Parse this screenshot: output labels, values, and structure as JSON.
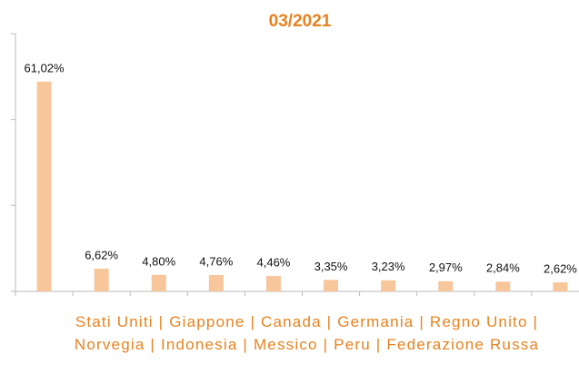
{
  "chart_data": {
    "type": "bar",
    "title": "03/2021",
    "categories": [
      null,
      null,
      null,
      null,
      null,
      null,
      null,
      null,
      null,
      null
    ],
    "values": [
      61.02,
      6.62,
      4.8,
      4.76,
      4.46,
      3.35,
      3.23,
      2.97,
      2.84,
      2.62
    ],
    "value_labels": [
      "61,02%",
      "6,62%",
      "4,80%",
      "4,76%",
      "4,46%",
      "3,35%",
      "3,23%",
      "2,97%",
      "2,84%",
      "2,62%"
    ],
    "xlabel": "Stati Uniti | Giappone | Canada | Germania | Regno Unito | Norvegia | Indonesia | Messico | Peru | Federazione Russa",
    "color": "#f7c69b",
    "ylim": [
      0,
      75
    ],
    "yticks": [
      0,
      25,
      50,
      75
    ],
    "grid": false
  }
}
